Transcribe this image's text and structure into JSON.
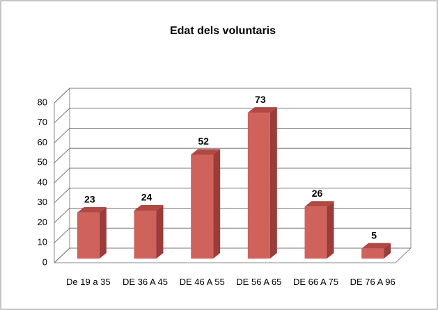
{
  "chart_data": {
    "type": "bar3d",
    "title": "Edat dels voluntaris",
    "categories": [
      "De 19 a 35",
      "DE 36 A 45",
      "DE 46 A 55",
      "DE 56 A 65",
      "DE 66 A 75",
      "DE 76 A 96"
    ],
    "values": [
      23,
      24,
      52,
      73,
      26,
      5
    ],
    "color": "#d0625c",
    "ylim": [
      0,
      80
    ],
    "yticks": [
      0,
      10,
      20,
      30,
      40,
      50,
      60,
      70,
      80
    ],
    "grid": true
  }
}
